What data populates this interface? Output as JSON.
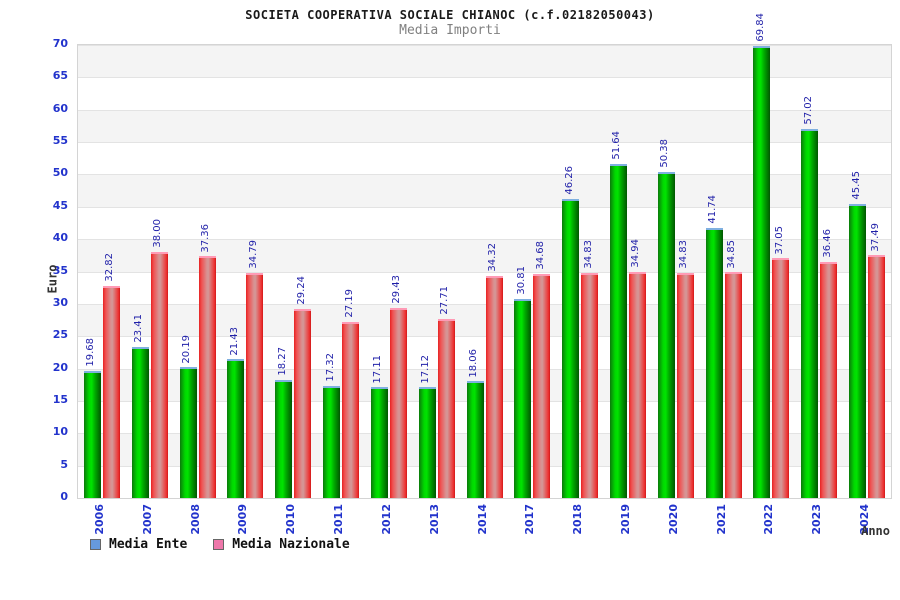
{
  "title": "SOCIETA COOPERATIVA SOCIALE CHIANOC (c.f.02182050043)",
  "subtitle": "Media Importi",
  "axes": {
    "y_label": "Euro",
    "x_label": "Anno",
    "y_ticks": [
      0,
      5,
      10,
      15,
      20,
      25,
      30,
      35,
      40,
      45,
      50,
      55,
      60,
      65,
      70
    ]
  },
  "legend": {
    "items": [
      {
        "label": "Media Ente",
        "swatch": "#6699dd"
      },
      {
        "label": "Media Nazionale",
        "swatch": "#ee77aa"
      }
    ]
  },
  "chart_data": {
    "type": "bar",
    "title": "SOCIETA COOPERATIVA SOCIALE CHIANOC (c.f.02182050043)",
    "subtitle": "Media Importi",
    "categories": [
      "2006",
      "2007",
      "2008",
      "2009",
      "2010",
      "2011",
      "2012",
      "2013",
      "2014",
      "2017",
      "2018",
      "2019",
      "2020",
      "2021",
      "2022",
      "2023",
      "2024"
    ],
    "series": [
      {
        "name": "Media Ente",
        "values": [
          19.68,
          23.41,
          20.19,
          21.43,
          18.27,
          17.32,
          17.11,
          17.12,
          18.06,
          30.81,
          46.26,
          51.64,
          50.38,
          41.74,
          69.84,
          57.02,
          45.45
        ]
      },
      {
        "name": "Media Nazionale",
        "values": [
          32.82,
          38.0,
          37.36,
          34.79,
          29.24,
          27.19,
          29.43,
          27.71,
          34.32,
          34.68,
          34.83,
          34.94,
          34.83,
          34.85,
          37.05,
          36.46,
          37.49
        ]
      }
    ],
    "xlabel": "Anno",
    "ylabel": "Euro",
    "ylim": [
      0,
      70
    ],
    "y_tick_step": 5,
    "grid": "alternating-horizontal-bands",
    "legend_position": "bottom-left",
    "value_labels": "rotated-vertical",
    "x_tick_labels_rotated": true
  },
  "colors": {
    "bar_ente": "#00cc00",
    "bar_nazionale": "#ee3333",
    "legend_ente_swatch": "#6699dd",
    "legend_nazionale_swatch": "#ee77aa",
    "axis_tick_text": "#2233cc",
    "value_label_text": "#1f1fa8",
    "band_gray": "#f4f4f4",
    "title_text": "#1a1a1a",
    "subtitle_text": "#808080"
  }
}
